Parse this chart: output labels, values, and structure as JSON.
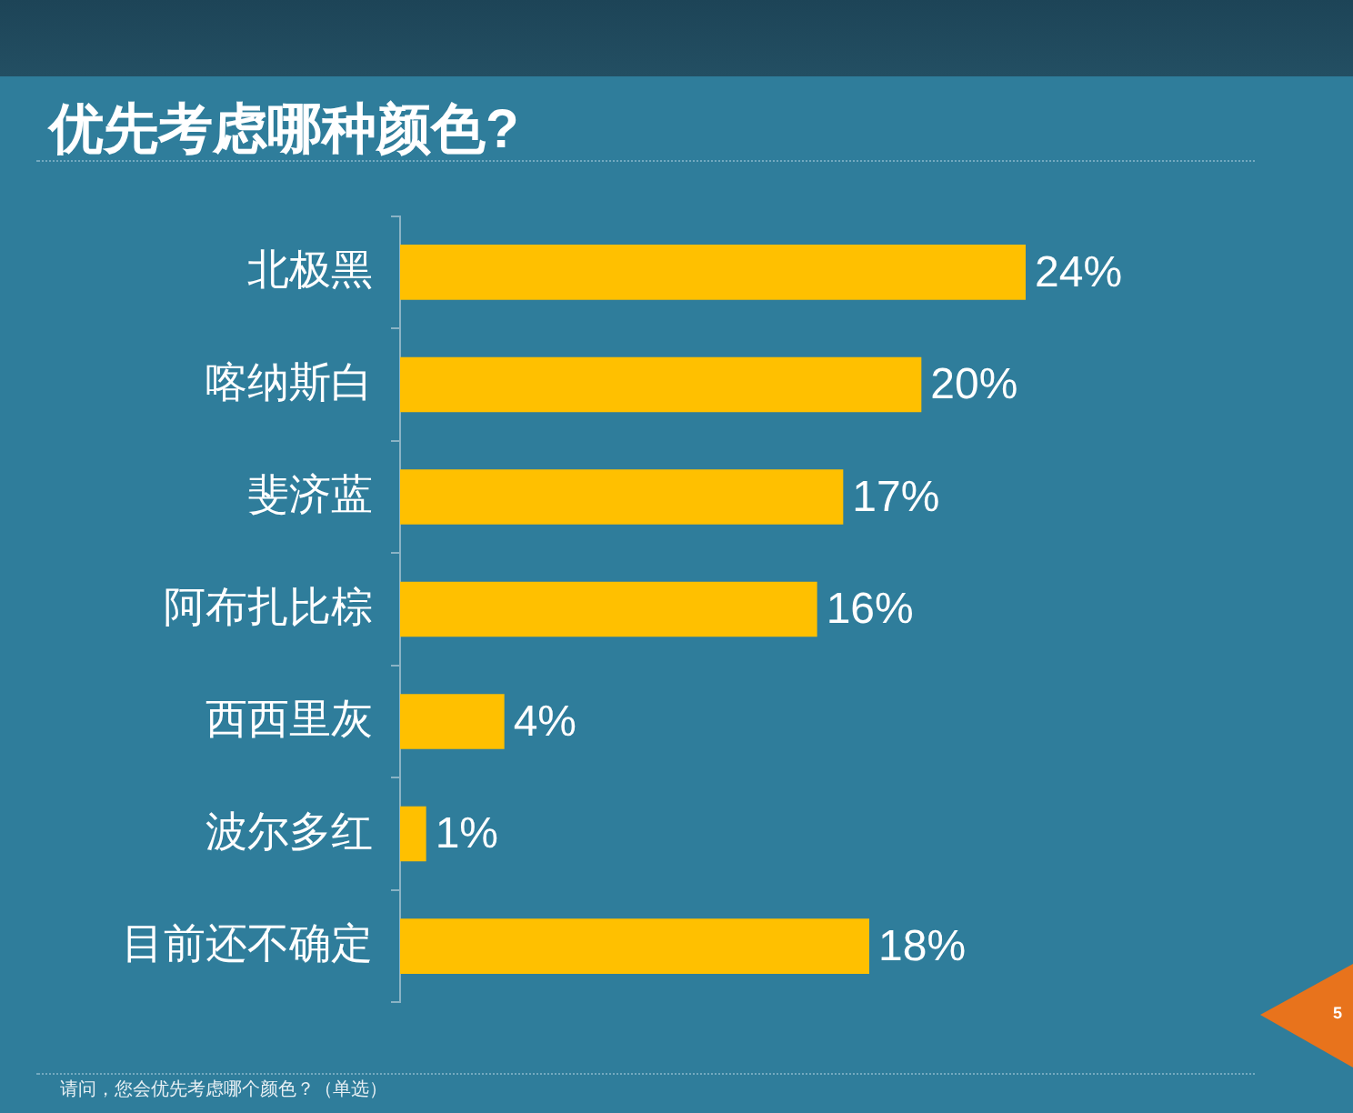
{
  "chart_data": {
    "type": "bar",
    "orientation": "horizontal",
    "title": "优先考虑哪种颜色?",
    "categories": [
      "北极黑",
      "喀纳斯白",
      "斐济蓝",
      "阿布扎比棕",
      "西西里灰",
      "波尔多红",
      "目前还不确定"
    ],
    "values": [
      24,
      20,
      17,
      16,
      4,
      1,
      18
    ],
    "color": "#ffc000",
    "value_labels": [
      "24%",
      "20%",
      "17%",
      "16%",
      "4%",
      "1%",
      "18%"
    ],
    "annotations": [
      "请问，您会优先考虑哪个颜色？（单选）",
      "5"
    ]
  }
}
